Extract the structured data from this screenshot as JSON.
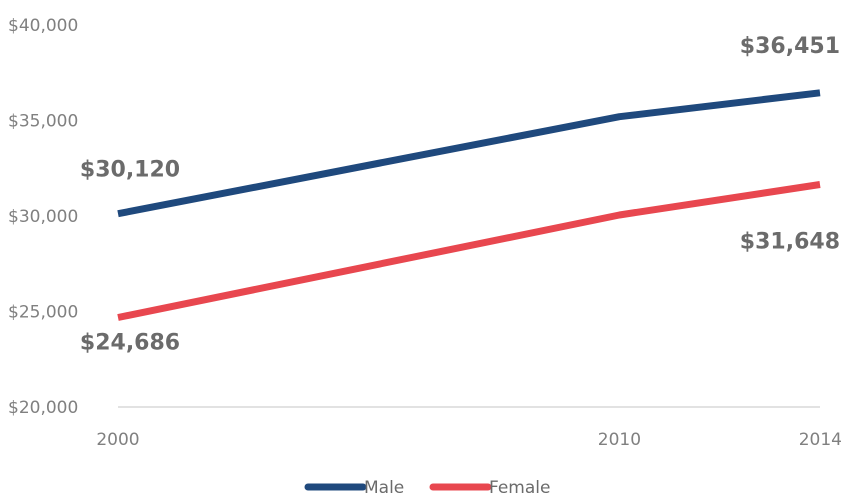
{
  "chart_data": {
    "type": "line",
    "x": [
      "2000",
      "2010",
      "2014"
    ],
    "ylim": [
      20000,
      40000
    ],
    "y_ticks": [
      {
        "value": 40000,
        "label": "$40,000"
      },
      {
        "value": 35000,
        "label": "$35,000"
      },
      {
        "value": 30000,
        "label": "$30,000"
      },
      {
        "value": 25000,
        "label": "$25,000"
      },
      {
        "value": 20000,
        "label": "$20,000"
      }
    ],
    "series": [
      {
        "name": "Male",
        "color": "#1f497d",
        "values": [
          30120,
          35200,
          36451
        ]
      },
      {
        "name": "Female",
        "color": "#e8474f",
        "values": [
          24686,
          30050,
          31648
        ]
      }
    ],
    "data_labels": [
      {
        "series": 0,
        "point": 0,
        "text": "$30,120"
      },
      {
        "series": 0,
        "point": 2,
        "text": "$36,451"
      },
      {
        "series": 1,
        "point": 0,
        "text": "$24,686"
      },
      {
        "series": 1,
        "point": 2,
        "text": "$31,648"
      }
    ],
    "grid": false,
    "legend_position": "bottom",
    "title": "",
    "xlabel": "",
    "ylabel": ""
  }
}
